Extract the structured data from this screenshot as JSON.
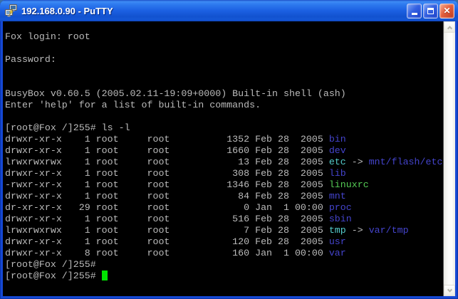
{
  "window": {
    "title": "192.168.0.90 - PuTTY"
  },
  "icons": {
    "app": "putty-two-computers",
    "minimize": "_",
    "maximize": "□",
    "close": "✕",
    "scroll_up": "^",
    "scroll_down": "v"
  },
  "colors": {
    "titlebar_blue": "#1C60E2",
    "close_red": "#D8452B",
    "terminal_bg": "#000000",
    "terminal_fg": "#BBBBBB",
    "directory_blue": "#4444CC",
    "symlink_cyan": "#55CCCC",
    "executable_green": "#55CC55",
    "cursor_green": "#00E400"
  },
  "terminal": {
    "lines": [
      [
        {
          "t": "Fox login: root"
        }
      ],
      [],
      [
        {
          "t": "Password:"
        }
      ],
      [],
      [],
      [
        {
          "t": "BusyBox v0.60.5 (2005.02.11-19:09+0000) Built-in shell (ash)"
        }
      ],
      [
        {
          "t": "Enter 'help' for a list of built-in commands."
        }
      ],
      [],
      [
        {
          "t": "[root@Fox /]255# ls -l"
        }
      ],
      [
        {
          "t": "drwxr-xr-x    1 root     root          1352 Feb 28  2005 "
        },
        {
          "t": "bin",
          "c": "dir"
        }
      ],
      [
        {
          "t": "drwxr-xr-x    1 root     root          1660 Feb 28  2005 "
        },
        {
          "t": "dev",
          "c": "dir"
        }
      ],
      [
        {
          "t": "lrwxrwxrwx    1 root     root            13 Feb 28  2005 "
        },
        {
          "t": "etc",
          "c": "lnk"
        },
        {
          "t": " -> "
        },
        {
          "t": "mnt/flash/etc",
          "c": "dir"
        }
      ],
      [
        {
          "t": "drwxr-xr-x    1 root     root           308 Feb 28  2005 "
        },
        {
          "t": "lib",
          "c": "dir"
        }
      ],
      [
        {
          "t": "-rwxr-xr-x    1 root     root          1346 Feb 28  2005 "
        },
        {
          "t": "linuxrc",
          "c": "exe"
        }
      ],
      [
        {
          "t": "drwxr-xr-x    1 root     root            84 Feb 28  2005 "
        },
        {
          "t": "mnt",
          "c": "dir"
        }
      ],
      [
        {
          "t": "dr-xr-xr-x   29 root     root             0 Jan  1 00:00 "
        },
        {
          "t": "proc",
          "c": "dir"
        }
      ],
      [
        {
          "t": "drwxr-xr-x    1 root     root           516 Feb 28  2005 "
        },
        {
          "t": "sbin",
          "c": "dir"
        }
      ],
      [
        {
          "t": "lrwxrwxrwx    1 root     root             7 Feb 28  2005 "
        },
        {
          "t": "tmp",
          "c": "lnk"
        },
        {
          "t": " -> "
        },
        {
          "t": "var/tmp",
          "c": "dir"
        }
      ],
      [
        {
          "t": "drwxr-xr-x    1 root     root           120 Feb 28  2005 "
        },
        {
          "t": "usr",
          "c": "dir"
        }
      ],
      [
        {
          "t": "drwxr-xr-x    8 root     root           160 Jan  1 00:00 "
        },
        {
          "t": "var",
          "c": "dir"
        }
      ],
      [
        {
          "t": "[root@Fox /]255#"
        }
      ],
      [
        {
          "t": "[root@Fox /]255# "
        },
        {
          "cursor": true
        }
      ]
    ]
  }
}
